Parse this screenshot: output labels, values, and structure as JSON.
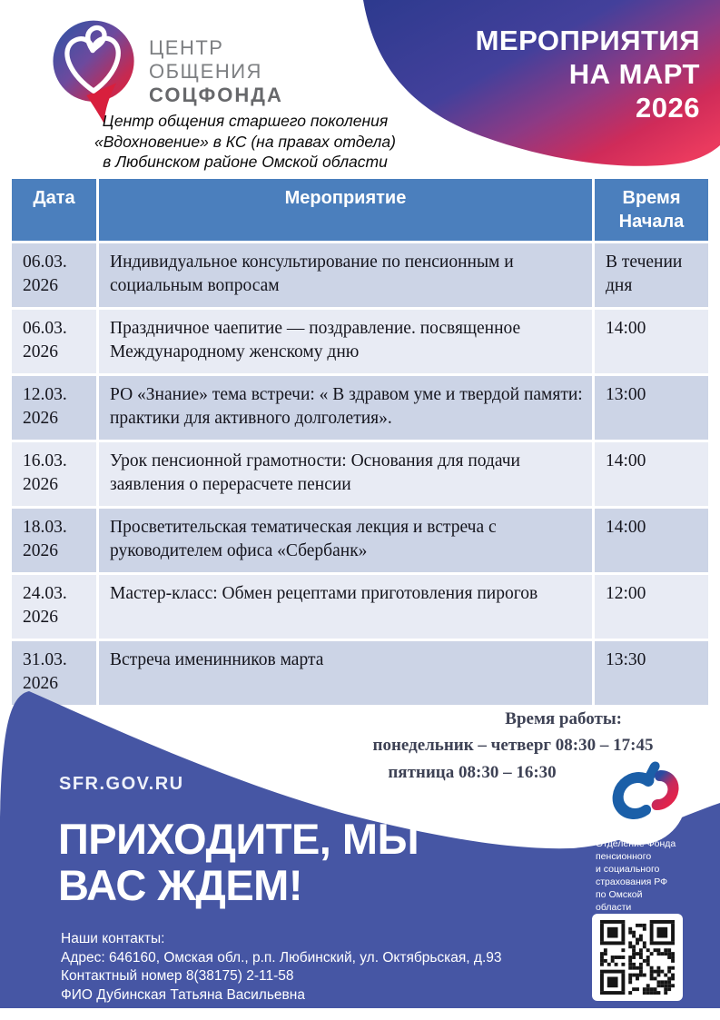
{
  "logo": {
    "line1": "ЦЕНТР",
    "line2": "ОБЩЕНИЯ",
    "line3": "СОЦФОНДА"
  },
  "banner": {
    "line1": "МЕРОПРИЯТИЯ",
    "line2": "НА МАРТ",
    "line3": "2026"
  },
  "subtitle": {
    "line1": "Центр общения старшего поколения",
    "line2": "«Вдохновение» в КС (на правах отдела)",
    "line3": "в Любинском районе Омской области"
  },
  "table": {
    "columns": [
      "Дата",
      "Мероприятие",
      "Время Начала"
    ],
    "rows": [
      {
        "date": "06.03. 2026",
        "event": "Индивидуальное консультирование по пенсионным и социальным вопросам",
        "time": "В течении дня"
      },
      {
        "date": "06.03. 2026",
        "event": "Праздничное чаепитие — поздравление. посвященное Международному женскому дню",
        "time": "14:00"
      },
      {
        "date": "12.03. 2026",
        "event": "РО «Знание» тема встречи: « В здравом уме и твердой памяти: практики для активного долголетия».",
        "time": "13:00"
      },
      {
        "date": "16.03. 2026",
        "event": "Урок пенсионной грамотности: Основания для подачи заявления о перерасчете пенсии",
        "time": "14:00"
      },
      {
        "date": "18.03. 2026",
        "event": "Просветительская тематическая лекция и встреча с руководителем офиса «Сбербанк»",
        "time": "14:00"
      },
      {
        "date": "24.03. 2026",
        "event": "Мастер-класс:  Обмен рецептами приготовления пирогов",
        "time": "12:00"
      },
      {
        "date": "31.03. 2026",
        "event": "Встреча именинников марта",
        "time": "13:30"
      }
    ]
  },
  "hours": {
    "title": "Время работы:",
    "line1": "понедельник – четверг 08:30 – 17:45",
    "line2": "пятница  08:30 – 16:30"
  },
  "footer": {
    "site": "SFR.GOV.RU",
    "headline_line1": "ПРИХОДИТЕ, МЫ",
    "headline_line2": "ВАС ЖДЕМ!",
    "contacts_title": "Наши контакты:",
    "address": "Адрес: 646160, Омская обл., р.п. Любинский, ул. Октябрьская, д.93",
    "phone": "Контактный номер 8(38175) 2-11-58",
    "person": "ФИО Дубинская Татьяна Васильевна",
    "org": "Отделение Фонда\nпенсионного\nи социального\nстрахования РФ\nпо Омской\nобласти"
  },
  "colors": {
    "table_header_bg": "#4b7fbd",
    "row_dark": "#ccd4e6",
    "row_light": "#e8ebf4",
    "footer_bg": "#4656a4",
    "banner_blue": "#2d3a8e",
    "banner_red": "#e62a52",
    "hours_text": "#3e4255",
    "logo_gray": "#7d7f82"
  }
}
